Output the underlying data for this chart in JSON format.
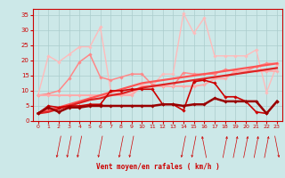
{
  "x": [
    0,
    1,
    2,
    3,
    4,
    5,
    6,
    7,
    8,
    9,
    10,
    11,
    12,
    13,
    14,
    15,
    16,
    17,
    18,
    19,
    20,
    21,
    22,
    23
  ],
  "series": [
    {
      "y": [
        2.5,
        4.5,
        3.0,
        4.5,
        4.5,
        5.0,
        5.0,
        5.0,
        5.0,
        5.0,
        5.0,
        5.0,
        5.5,
        5.5,
        5.0,
        5.5,
        5.5,
        7.5,
        6.5,
        6.5,
        6.5,
        6.5,
        2.5,
        6.5
      ],
      "color": "#990000",
      "linewidth": 1.8,
      "marker": "D",
      "markersize": 1.8,
      "zorder": 5
    },
    {
      "y": [
        2.5,
        5.0,
        4.5,
        5.0,
        5.0,
        5.5,
        5.5,
        10.0,
        10.0,
        10.5,
        10.5,
        10.5,
        5.5,
        5.5,
        3.5,
        13.0,
        13.5,
        12.5,
        8.0,
        8.0,
        6.5,
        3.0,
        2.5,
        6.5
      ],
      "color": "#cc0000",
      "linewidth": 1.2,
      "marker": "D",
      "markersize": 1.8,
      "zorder": 4
    },
    {
      "y": [
        8.5,
        8.5,
        8.5,
        8.5,
        8.5,
        8.5,
        8.5,
        8.5,
        8.5,
        8.5,
        11.5,
        11.5,
        11.5,
        11.5,
        11.5,
        11.5,
        12.0,
        14.0,
        14.0,
        16.5,
        16.5,
        16.5,
        16.5,
        16.5
      ],
      "color": "#ffaaaa",
      "linewidth": 1.4,
      "marker": "D",
      "markersize": 1.8,
      "zorder": 3
    },
    {
      "y": [
        8.5,
        21.5,
        19.5,
        22.0,
        24.5,
        24.5,
        31.0,
        10.0,
        9.0,
        9.0,
        12.0,
        11.5,
        15.5,
        15.5,
        35.5,
        29.0,
        34.0,
        21.5,
        21.5,
        21.5,
        21.5,
        23.5,
        9.5,
        18.5
      ],
      "color": "#ffbbbb",
      "linewidth": 1.0,
      "marker": "D",
      "markersize": 1.8,
      "zorder": 2
    },
    {
      "y": [
        8.5,
        9.0,
        10.0,
        14.0,
        19.5,
        22.0,
        14.5,
        13.5,
        14.5,
        15.5,
        15.5,
        12.0,
        11.5,
        11.5,
        16.0,
        15.5,
        15.5,
        15.5,
        17.0,
        16.5,
        16.5,
        18.0,
        19.0,
        19.0
      ],
      "color": "#ff8888",
      "linewidth": 1.1,
      "marker": "D",
      "markersize": 1.8,
      "zorder": 2
    },
    {
      "y": [
        2.5,
        3.5,
        4.5,
        5.5,
        6.5,
        7.5,
        8.5,
        9.5,
        10.5,
        11.5,
        12.5,
        13.0,
        13.5,
        14.0,
        14.5,
        15.0,
        15.5,
        16.0,
        16.5,
        17.0,
        17.5,
        18.0,
        18.5,
        19.0
      ],
      "color": "#ff5555",
      "linewidth": 1.6,
      "marker": null,
      "markersize": 0,
      "zorder": 3
    },
    {
      "y": [
        2.5,
        3.0,
        4.0,
        5.0,
        6.0,
        7.0,
        7.5,
        8.5,
        9.0,
        10.0,
        11.0,
        11.5,
        12.0,
        12.5,
        13.0,
        13.5,
        14.0,
        14.5,
        15.0,
        15.5,
        16.0,
        16.5,
        17.0,
        17.5
      ],
      "color": "#dd2222",
      "linewidth": 1.6,
      "marker": null,
      "markersize": 0,
      "zorder": 3
    }
  ],
  "xlim": [
    -0.5,
    23.5
  ],
  "ylim": [
    0,
    37
  ],
  "yticks": [
    0,
    5,
    10,
    15,
    20,
    25,
    30,
    35
  ],
  "xticks": [
    0,
    1,
    2,
    3,
    4,
    5,
    6,
    7,
    8,
    9,
    10,
    11,
    12,
    13,
    14,
    15,
    16,
    17,
    18,
    19,
    20,
    21,
    22,
    23
  ],
  "xlabel": "Vent moyen/en rafales ( km/h )",
  "bg_color": "#cce8e8",
  "grid_color": "#aacccc",
  "tick_color": "#cc0000",
  "label_color": "#cc0000",
  "arrow_angles": [
    210,
    180,
    225,
    225,
    225,
    210,
    225,
    210,
    225,
    225,
    180,
    180,
    180,
    180,
    225,
    225,
    315,
    0,
    45,
    45,
    45,
    45,
    45,
    135
  ]
}
